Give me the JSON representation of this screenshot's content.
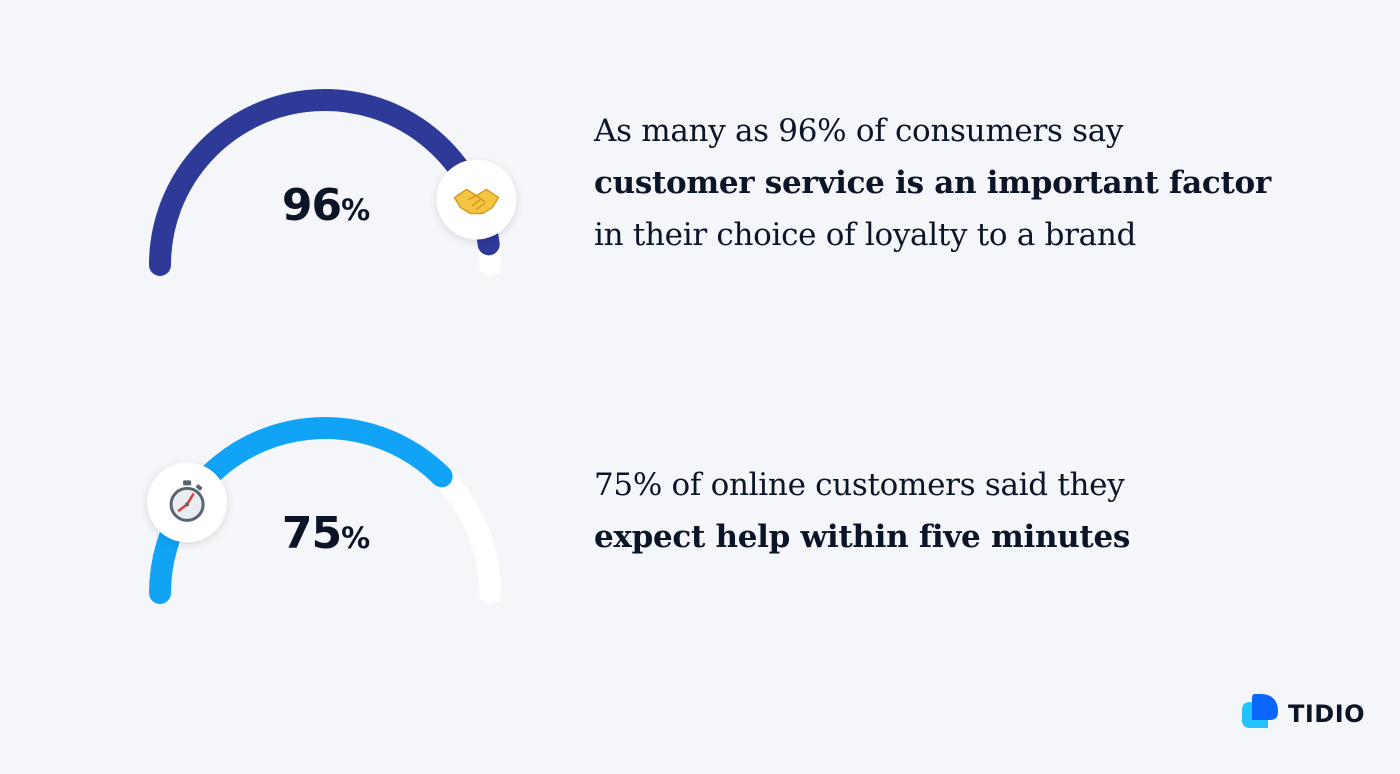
{
  "chart_data": [
    {
      "type": "gauge",
      "value": 96,
      "max": 100,
      "label": "96",
      "unit": "%",
      "icon": "handshake-icon",
      "color": "#2e3a98",
      "track_color": "#ffffff",
      "text": [
        "As many as 96% of consumers say",
        "customer service is an important factor",
        "in their choice of loyalty to a brand"
      ]
    },
    {
      "type": "gauge",
      "value": 75,
      "max": 100,
      "label": "75",
      "unit": "%",
      "icon": "stopwatch-icon",
      "color": "#10a3f6",
      "track_color": "#ffffff",
      "text": [
        "75% of online customers said they",
        "expect help within five minutes"
      ]
    }
  ],
  "brand": {
    "name": "TIDIO",
    "icon": "tidio-logo-icon",
    "color": "#0a66ff"
  }
}
